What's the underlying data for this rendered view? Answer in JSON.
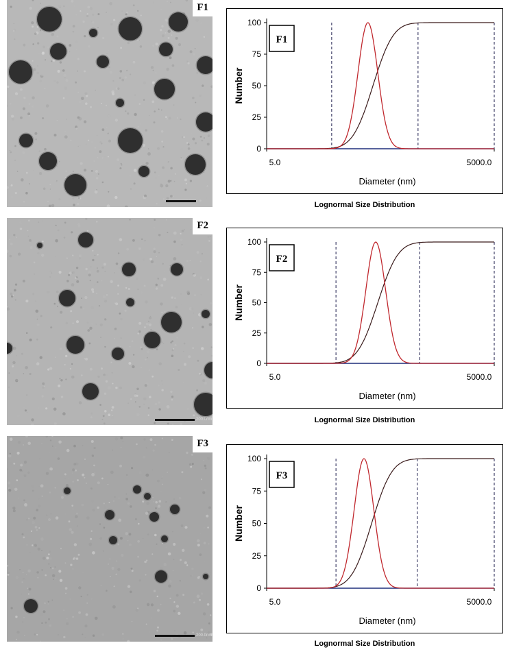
{
  "panels": [
    {
      "id": "F1",
      "tem_label": "F1",
      "scale_text": ""
    },
    {
      "id": "F2",
      "tem_label": "F2",
      "scale_text": "200.0nm"
    },
    {
      "id": "F3",
      "tem_label": "F3",
      "scale_text": "200.0nm"
    }
  ],
  "colors": {
    "distribution": "#c0272d",
    "cumulative": "#3a1b1b",
    "baseline": "#1f2d7a",
    "axis": "#000000"
  },
  "chart_data": [
    {
      "type": "line",
      "title": "F1",
      "xlabel": "Diameter (nm)",
      "ylabel": "Number",
      "caption": "Lognormal Size Distribution",
      "x_scale": "log",
      "xlim": [
        5.0,
        5000.0
      ],
      "ylim": [
        0,
        100
      ],
      "x_tick_labels": [
        "5.0",
        "5000.0"
      ],
      "y_ticks": [
        0,
        25,
        50,
        75,
        100
      ],
      "dashed_lines_x": [
        36,
        495,
        5000
      ],
      "series": [
        {
          "kind": "distribution",
          "peak": 108,
          "log_sigma": 0.13
        },
        {
          "kind": "cumulative",
          "midpoint": 126,
          "log_sigma": 0.21
        }
      ]
    },
    {
      "type": "line",
      "title": "F2",
      "xlabel": "Diameter (nm)",
      "ylabel": "Number",
      "caption": "Lognormal Size Distribution",
      "x_scale": "log",
      "xlim": [
        5.0,
        5000.0
      ],
      "ylim": [
        0,
        100
      ],
      "x_tick_labels": [
        "5.0",
        "5000.0"
      ],
      "y_ticks": [
        0,
        25,
        50,
        75,
        100
      ],
      "dashed_lines_x": [
        41,
        522,
        5000
      ],
      "series": [
        {
          "kind": "distribution",
          "peak": 137,
          "log_sigma": 0.13
        },
        {
          "kind": "cumulative",
          "midpoint": 146,
          "log_sigma": 0.21
        }
      ]
    },
    {
      "type": "line",
      "title": "F3",
      "xlabel": "Diameter (nm)",
      "ylabel": "Number",
      "caption": "Lognormal Size Distribution",
      "x_scale": "log",
      "xlim": [
        5.0,
        5000.0
      ],
      "ylim": [
        0,
        100
      ],
      "x_tick_labels": [
        "5.0",
        "5000.0"
      ],
      "y_ticks": [
        0,
        25,
        50,
        75,
        100
      ],
      "dashed_lines_x": [
        41,
        483,
        5000
      ],
      "series": [
        {
          "kind": "distribution",
          "peak": 96,
          "log_sigma": 0.13
        },
        {
          "kind": "cumulative",
          "midpoint": 121,
          "log_sigma": 0.21
        }
      ]
    }
  ]
}
